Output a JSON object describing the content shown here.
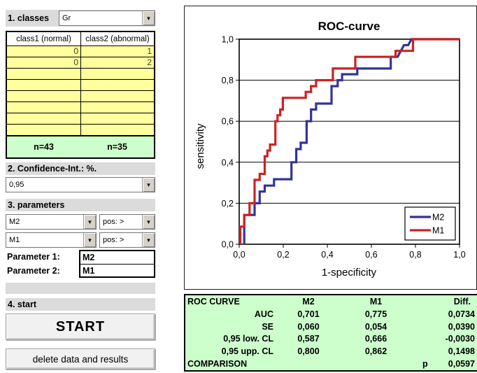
{
  "panel": {
    "step1_label": "1. classes",
    "classes_value": "Gr",
    "table": {
      "col1_header": "class1 (normal)",
      "col2_header": "class2 (abnormal)",
      "rows": [
        [
          "0",
          "1"
        ],
        [
          "0",
          "2"
        ],
        [
          "",
          ""
        ],
        [
          "",
          ""
        ],
        [
          "",
          ""
        ],
        [
          "",
          ""
        ],
        [
          "",
          ""
        ],
        [
          "",
          ""
        ]
      ],
      "totals": [
        "n=43",
        "n=35"
      ]
    },
    "step2_label": "2. Confidence-Int.: %.",
    "confidence_value": "0,95",
    "step3_label": "3. parameters",
    "param_rows": [
      {
        "value": "M2",
        "pos": "pos: >"
      },
      {
        "value": "M1",
        "pos": "pos: >"
      }
    ],
    "param1_label": "Parameter 1:",
    "param1_value": "M2",
    "param2_label": "Parameter 2:",
    "param2_value": "M1",
    "step4_label": "4. start",
    "start_button": "START",
    "delete_button": "delete data and results"
  },
  "chart_data": {
    "type": "line",
    "subtype": "ROC step curves",
    "title": "ROC-curve",
    "xlabel": "1-specificity",
    "ylabel": "sensitivity",
    "xlim": [
      0,
      1
    ],
    "ylim": [
      0,
      1
    ],
    "x_ticks": [
      "0,0",
      "0,2",
      "0,4",
      "0,6",
      "0,8",
      "1,0"
    ],
    "y_ticks": [
      "0,0",
      "0,2",
      "0,4",
      "0,6",
      "0,8",
      "1,0"
    ],
    "grid": "horizontal gridlines at 0,2 0,4 0,6 0,8",
    "legend_position": "lower right",
    "series": [
      {
        "name": "M2",
        "color": "#333399",
        "points": [
          [
            0.023,
            0.0
          ],
          [
            0.023,
            0.143
          ],
          [
            0.07,
            0.143
          ],
          [
            0.07,
            0.2
          ],
          [
            0.093,
            0.2
          ],
          [
            0.093,
            0.257
          ],
          [
            0.116,
            0.257
          ],
          [
            0.116,
            0.286
          ],
          [
            0.158,
            0.286
          ],
          [
            0.158,
            0.317
          ],
          [
            0.237,
            0.317
          ],
          [
            0.237,
            0.4
          ],
          [
            0.259,
            0.4
          ],
          [
            0.259,
            0.464
          ],
          [
            0.279,
            0.464
          ],
          [
            0.279,
            0.495
          ],
          [
            0.306,
            0.495
          ],
          [
            0.306,
            0.6
          ],
          [
            0.326,
            0.6
          ],
          [
            0.326,
            0.657
          ],
          [
            0.349,
            0.657
          ],
          [
            0.349,
            0.686
          ],
          [
            0.419,
            0.686
          ],
          [
            0.419,
            0.771
          ],
          [
            0.447,
            0.771
          ],
          [
            0.447,
            0.8
          ],
          [
            0.467,
            0.8
          ],
          [
            0.467,
            0.829
          ],
          [
            0.536,
            0.829
          ],
          [
            0.536,
            0.857
          ],
          [
            0.688,
            0.857
          ],
          [
            0.688,
            0.914
          ],
          [
            0.719,
            0.914
          ],
          [
            0.748,
            0.971
          ],
          [
            0.767,
            0.971
          ],
          [
            0.782,
            1.0
          ],
          [
            1.0,
            1.0
          ]
        ]
      },
      {
        "name": "M1",
        "color": "#CC2222",
        "points": [
          [
            0.005,
            0.0
          ],
          [
            0.005,
            0.086
          ],
          [
            0.023,
            0.086
          ],
          [
            0.023,
            0.143
          ],
          [
            0.047,
            0.143
          ],
          [
            0.047,
            0.2
          ],
          [
            0.07,
            0.2
          ],
          [
            0.07,
            0.314
          ],
          [
            0.093,
            0.314
          ],
          [
            0.093,
            0.343
          ],
          [
            0.116,
            0.343
          ],
          [
            0.116,
            0.429
          ],
          [
            0.128,
            0.429
          ],
          [
            0.128,
            0.457
          ],
          [
            0.14,
            0.457
          ],
          [
            0.14,
            0.486
          ],
          [
            0.164,
            0.486
          ],
          [
            0.164,
            0.6
          ],
          [
            0.174,
            0.6
          ],
          [
            0.174,
            0.629
          ],
          [
            0.186,
            0.629
          ],
          [
            0.186,
            0.657
          ],
          [
            0.198,
            0.657
          ],
          [
            0.198,
            0.714
          ],
          [
            0.302,
            0.714
          ],
          [
            0.302,
            0.743
          ],
          [
            0.326,
            0.743
          ],
          [
            0.326,
            0.771
          ],
          [
            0.349,
            0.771
          ],
          [
            0.349,
            0.8
          ],
          [
            0.425,
            0.8
          ],
          [
            0.425,
            0.857
          ],
          [
            0.527,
            0.857
          ],
          [
            0.527,
            0.914
          ],
          [
            0.71,
            0.914
          ],
          [
            0.71,
            0.943
          ],
          [
            0.789,
            0.943
          ],
          [
            0.789,
            1.0
          ],
          [
            1.0,
            1.0
          ]
        ]
      }
    ]
  },
  "results_table": {
    "header": [
      "ROC CURVE",
      "M2",
      "M1",
      "Diff."
    ],
    "rows": [
      {
        "label": "AUC",
        "m2": "0,701",
        "m1": "0,775",
        "diff": "0,0734"
      },
      {
        "label": "SE",
        "m2": "0,060",
        "m1": "0,054",
        "diff": "0,0390"
      },
      {
        "label": "0,95 low. CL",
        "m2": "0,587",
        "m1": "0,666",
        "diff": "-0,0030"
      },
      {
        "label": "0,95 upp. CL",
        "m2": "0,800",
        "m1": "0,862",
        "diff": "0,1498"
      }
    ],
    "comparison_label": "COMPARISON",
    "p_label": "p",
    "p_value": "0,0597"
  },
  "colors": {
    "m2_line": "#333399",
    "m1_line": "#CC2222",
    "cell_yellow": "#FFFF9E",
    "cell_green": "#CCFFCC",
    "panel_gray": "#DBDBDB"
  }
}
